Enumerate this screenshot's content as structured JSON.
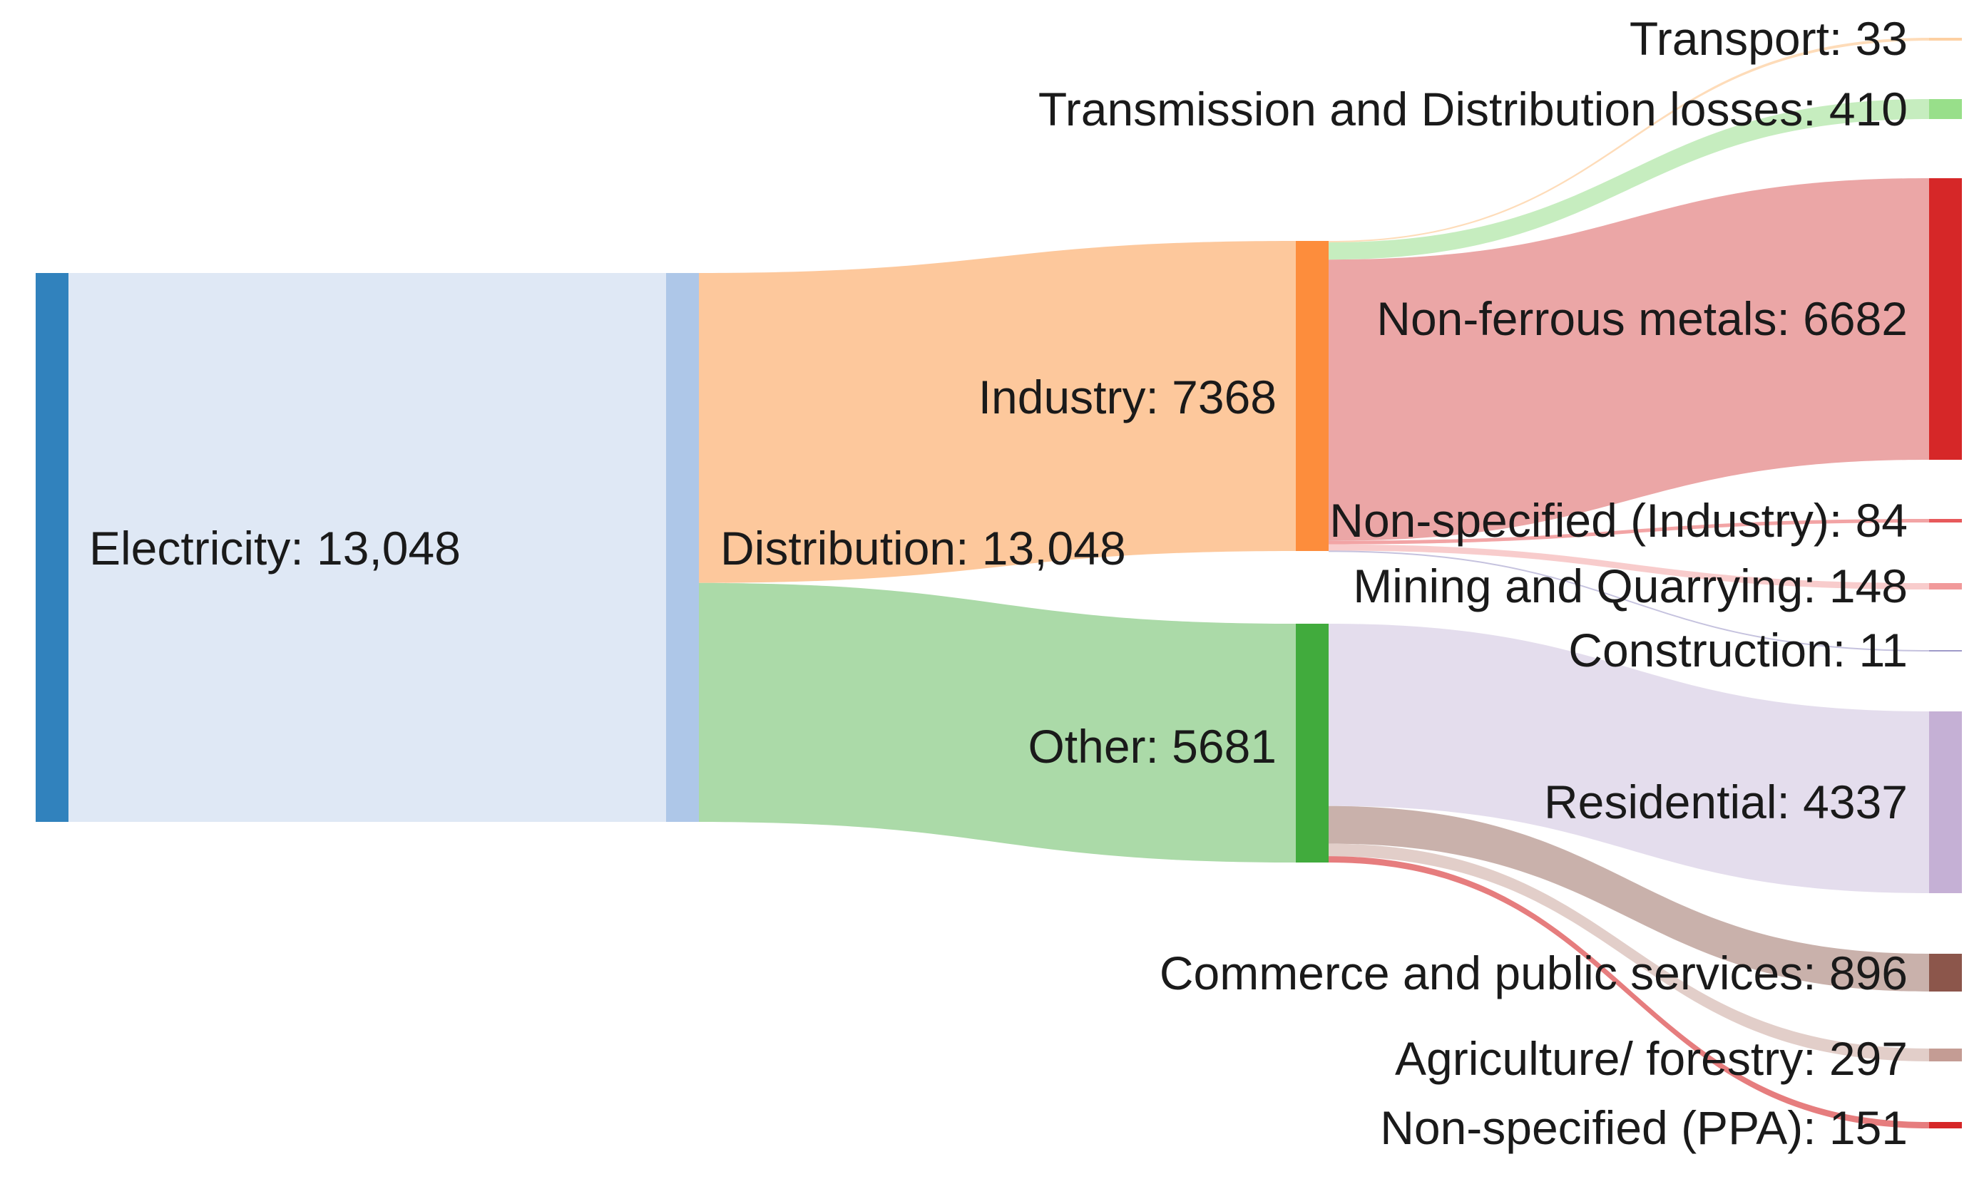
{
  "chart_data": {
    "type": "sankey",
    "title": "",
    "colors": {
      "electricity": "#3182bd",
      "electricity_flow": "#dfe8f5",
      "distribution": "#aec7e8",
      "industry": "#fd8d3c",
      "industry_flow": "#fdc89c",
      "other": "#41ab3d",
      "other_flow": "#abdaa8",
      "transport": "#fdd0a2",
      "td_losses": "#98df8a",
      "nonferrous": "#d62728",
      "nonferrous_flow": "#eba6a6",
      "nonspec_industry": "#e7595b",
      "mining": "#f1999a",
      "construction": "#9e9ac8",
      "residential": "#c5b0d5",
      "residential_flow": "#e4dded",
      "commerce": "#8c564b",
      "commerce_flow": "#c9b1ab",
      "agriculture": "#c49c94",
      "agriculture_flow": "#e2cec9",
      "nonspec_ppa": "#d62728"
    },
    "nodes": [
      {
        "id": "electricity",
        "label": "Electricity: 13,048",
        "value": 13048
      },
      {
        "id": "distribution",
        "label": "Distribution: 13,048",
        "value": 13048
      },
      {
        "id": "industry",
        "label": "Industry:  7368",
        "value": 7368
      },
      {
        "id": "other",
        "label": "Other:  5681",
        "value": 5681
      },
      {
        "id": "transport",
        "label": "Transport: 33",
        "value": 33
      },
      {
        "id": "td_losses",
        "label": "Transmission and Distribution losses: 410",
        "value": 410
      },
      {
        "id": "nonferrous",
        "label": "Non-ferrous metals:  6682",
        "value": 6682
      },
      {
        "id": "nonspec_industry",
        "label": "Non-specified (Industry): 84",
        "value": 84
      },
      {
        "id": "mining",
        "label": "Mining and Quarrying: 148",
        "value": 148
      },
      {
        "id": "construction",
        "label": "Construction: 11",
        "value": 11
      },
      {
        "id": "residential",
        "label": "Residential:  4337",
        "value": 4337
      },
      {
        "id": "commerce",
        "label": "Commerce and public services: 896",
        "value": 896
      },
      {
        "id": "agriculture",
        "label": "Agriculture/ forestry: 297",
        "value": 297
      },
      {
        "id": "nonspec_ppa",
        "label": "Non-specified (PPA): 151",
        "value": 151
      }
    ],
    "links": [
      {
        "source": "electricity",
        "target": "distribution",
        "value": 13048
      },
      {
        "source": "distribution",
        "target": "industry",
        "value": 7368
      },
      {
        "source": "distribution",
        "target": "other",
        "value": 5681
      },
      {
        "source": "industry",
        "target": "transport",
        "value": 33
      },
      {
        "source": "industry",
        "target": "td_losses",
        "value": 410
      },
      {
        "source": "industry",
        "target": "nonferrous",
        "value": 6682
      },
      {
        "source": "industry",
        "target": "nonspec_industry",
        "value": 84
      },
      {
        "source": "industry",
        "target": "mining",
        "value": 148
      },
      {
        "source": "industry",
        "target": "construction",
        "value": 11
      },
      {
        "source": "other",
        "target": "residential",
        "value": 4337
      },
      {
        "source": "other",
        "target": "commerce",
        "value": 896
      },
      {
        "source": "other",
        "target": "agriculture",
        "value": 297
      },
      {
        "source": "other",
        "target": "nonspec_ppa",
        "value": 151
      }
    ]
  }
}
